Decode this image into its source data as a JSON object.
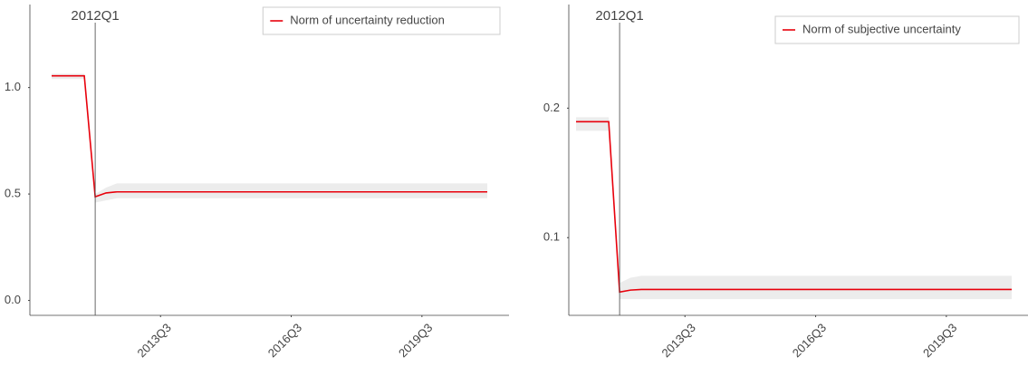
{
  "chart_data": [
    {
      "type": "line",
      "x": [
        "2011Q1",
        "2011Q2",
        "2011Q3",
        "2011Q4",
        "2012Q1",
        "2012Q2",
        "2012Q3",
        "2012Q4",
        "2013Q1",
        "2013Q2",
        "2013Q3",
        "2013Q4",
        "2014Q1",
        "2014Q2",
        "2014Q3",
        "2014Q4",
        "2015Q1",
        "2015Q2",
        "2015Q3",
        "2015Q4",
        "2016Q1",
        "2016Q2",
        "2016Q3",
        "2016Q4",
        "2017Q1",
        "2017Q2",
        "2017Q3",
        "2017Q4",
        "2018Q1",
        "2018Q2",
        "2018Q3",
        "2018Q4",
        "2019Q1",
        "2019Q2",
        "2019Q3",
        "2019Q4",
        "2020Q1",
        "2020Q2",
        "2020Q3",
        "2020Q4",
        "2021Q1"
      ],
      "xticks": [
        "2013Q3",
        "2016Q3",
        "2019Q3"
      ],
      "vline": "2012Q1",
      "series": [
        {
          "name": "Norm of uncertainty reduction",
          "color": "#e8000b",
          "values": [
            1.055,
            1.055,
            1.055,
            1.055,
            0.487,
            0.505,
            0.51,
            0.51,
            0.51,
            0.51,
            0.51,
            0.51,
            0.51,
            0.51,
            0.51,
            0.51,
            0.51,
            0.51,
            0.51,
            0.51,
            0.51,
            0.51,
            0.51,
            0.51,
            0.51,
            0.51,
            0.51,
            0.51,
            0.51,
            0.51,
            0.51,
            0.51,
            0.51,
            0.51,
            0.51,
            0.51,
            0.51,
            0.51,
            0.51,
            0.51,
            0.51
          ],
          "lower": [
            1.04,
            1.04,
            1.04,
            1.04,
            0.46,
            0.47,
            0.48,
            0.48,
            0.48,
            0.48,
            0.48,
            0.48,
            0.48,
            0.48,
            0.48,
            0.48,
            0.48,
            0.48,
            0.48,
            0.48,
            0.48,
            0.48,
            0.48,
            0.48,
            0.48,
            0.48,
            0.48,
            0.48,
            0.48,
            0.48,
            0.48,
            0.48,
            0.48,
            0.48,
            0.48,
            0.48,
            0.48,
            0.48,
            0.48,
            0.48,
            0.48
          ],
          "upper": [
            1.065,
            1.065,
            1.065,
            1.065,
            0.5,
            0.53,
            0.55,
            0.55,
            0.55,
            0.55,
            0.55,
            0.55,
            0.55,
            0.55,
            0.55,
            0.55,
            0.55,
            0.55,
            0.55,
            0.55,
            0.55,
            0.55,
            0.55,
            0.55,
            0.55,
            0.55,
            0.55,
            0.55,
            0.55,
            0.55,
            0.55,
            0.55,
            0.55,
            0.55,
            0.55,
            0.55,
            0.55,
            0.55,
            0.55,
            0.55,
            0.55
          ],
          "band_color": "#ececec"
        }
      ],
      "ylim": [
        -0.07,
        1.39
      ],
      "yticks": [
        {
          "value": 0,
          "label": "0.0"
        },
        0.5,
        {
          "value": 1,
          "label": "1.0"
        }
      ],
      "legend": "upper right"
    },
    {
      "type": "line",
      "x": [
        "2011Q1",
        "2011Q2",
        "2011Q3",
        "2011Q4",
        "2012Q1",
        "2012Q2",
        "2012Q3",
        "2012Q4",
        "2013Q1",
        "2013Q2",
        "2013Q3",
        "2013Q4",
        "2014Q1",
        "2014Q2",
        "2014Q3",
        "2014Q4",
        "2015Q1",
        "2015Q2",
        "2015Q3",
        "2015Q4",
        "2016Q1",
        "2016Q2",
        "2016Q3",
        "2016Q4",
        "2017Q1",
        "2017Q2",
        "2017Q3",
        "2017Q4",
        "2018Q1",
        "2018Q2",
        "2018Q3",
        "2018Q4",
        "2019Q1",
        "2019Q2",
        "2019Q3",
        "2019Q4",
        "2020Q1",
        "2020Q2",
        "2020Q3",
        "2020Q4",
        "2021Q1"
      ],
      "xticks": [
        "2013Q3",
        "2016Q3",
        "2019Q3"
      ],
      "vline": "2012Q1",
      "series": [
        {
          "name": "Norm of subjective uncertainty",
          "color": "#e8000b",
          "values": [
            0.1895,
            0.1895,
            0.1895,
            0.1895,
            0.058,
            0.0595,
            0.06,
            0.06,
            0.06,
            0.06,
            0.06,
            0.06,
            0.06,
            0.06,
            0.06,
            0.06,
            0.06,
            0.06,
            0.06,
            0.06,
            0.06,
            0.06,
            0.06,
            0.06,
            0.06,
            0.06,
            0.06,
            0.06,
            0.06,
            0.06,
            0.06,
            0.06,
            0.06,
            0.06,
            0.06,
            0.06,
            0.06,
            0.06,
            0.06,
            0.06,
            0.06
          ],
          "lower": [
            0.1825,
            0.1825,
            0.1825,
            0.1825,
            0.0525,
            0.0525,
            0.0525,
            0.0525,
            0.0525,
            0.0525,
            0.0525,
            0.0525,
            0.0525,
            0.0525,
            0.0525,
            0.0525,
            0.0525,
            0.0525,
            0.0525,
            0.0525,
            0.0525,
            0.0525,
            0.0525,
            0.0525,
            0.0525,
            0.0525,
            0.0525,
            0.0525,
            0.0525,
            0.0525,
            0.0525,
            0.0525,
            0.0525,
            0.0525,
            0.0525,
            0.0525,
            0.0525,
            0.0525,
            0.0525,
            0.0525,
            0.0525
          ],
          "upper": [
            0.193,
            0.193,
            0.193,
            0.193,
            0.065,
            0.069,
            0.0705,
            0.0705,
            0.0705,
            0.0705,
            0.0705,
            0.0705,
            0.0705,
            0.0705,
            0.0705,
            0.0705,
            0.0705,
            0.0705,
            0.0705,
            0.0705,
            0.0705,
            0.0705,
            0.0705,
            0.0705,
            0.0705,
            0.0705,
            0.0705,
            0.0705,
            0.0705,
            0.0705,
            0.0705,
            0.0705,
            0.0705,
            0.0705,
            0.0705,
            0.0705,
            0.0705,
            0.0705,
            0.0705,
            0.0705,
            0.0705
          ],
          "band_color": "#ececec"
        }
      ],
      "ylim": [
        0.04,
        0.28
      ],
      "yticks": [
        0.1,
        0.2
      ],
      "legend": "upper right"
    }
  ]
}
